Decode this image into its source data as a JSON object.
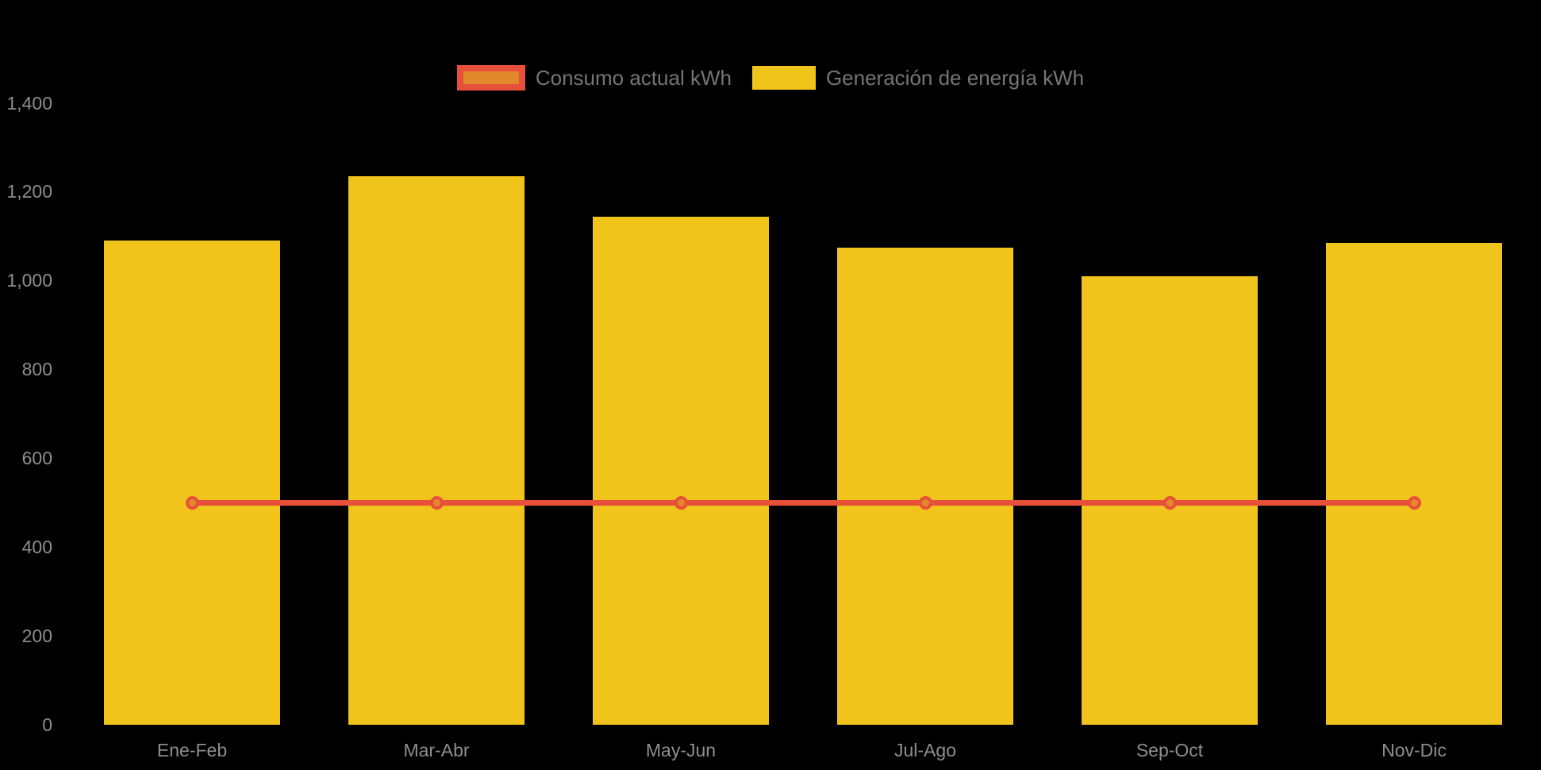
{
  "colors": {
    "background": "#000000",
    "yellow": "#F0C41B",
    "red": "#E8503C",
    "orange": "#E2892B",
    "axis_text": "#8e8e8e",
    "legend_text": "#757575"
  },
  "legend": {
    "items": [
      {
        "label": "Consumo actual kWh",
        "fill": "#E2892B",
        "border": "#E8503C"
      },
      {
        "label": "Generación de energía kWh",
        "fill": "#F0C41B",
        "border": "#F0C41B"
      }
    ]
  },
  "chart_data": {
    "type": "bar",
    "title": "",
    "xlabel": "",
    "ylabel": "",
    "categories": [
      "Ene-Feb",
      "Mar-Abr",
      "May-Jun",
      "Jul-Ago",
      "Sep-Oct",
      "Nov-Dic"
    ],
    "series": [
      {
        "name": "Consumo actual kWh",
        "type": "line",
        "values": [
          500,
          500,
          500,
          500,
          500,
          500
        ],
        "line_color": "#E8503C",
        "point_fill": "#E2892B"
      },
      {
        "name": "Generación de energía kWh",
        "type": "bar",
        "values": [
          1090,
          1235,
          1145,
          1075,
          1010,
          1085
        ],
        "color": "#F0C41B"
      }
    ],
    "ylim": [
      0,
      1400
    ],
    "ytick_step": 200,
    "yticks": [
      "0",
      "200",
      "400",
      "600",
      "800",
      "1,000",
      "1,200",
      "1,400"
    ],
    "grid": false,
    "legend_position": "top"
  }
}
